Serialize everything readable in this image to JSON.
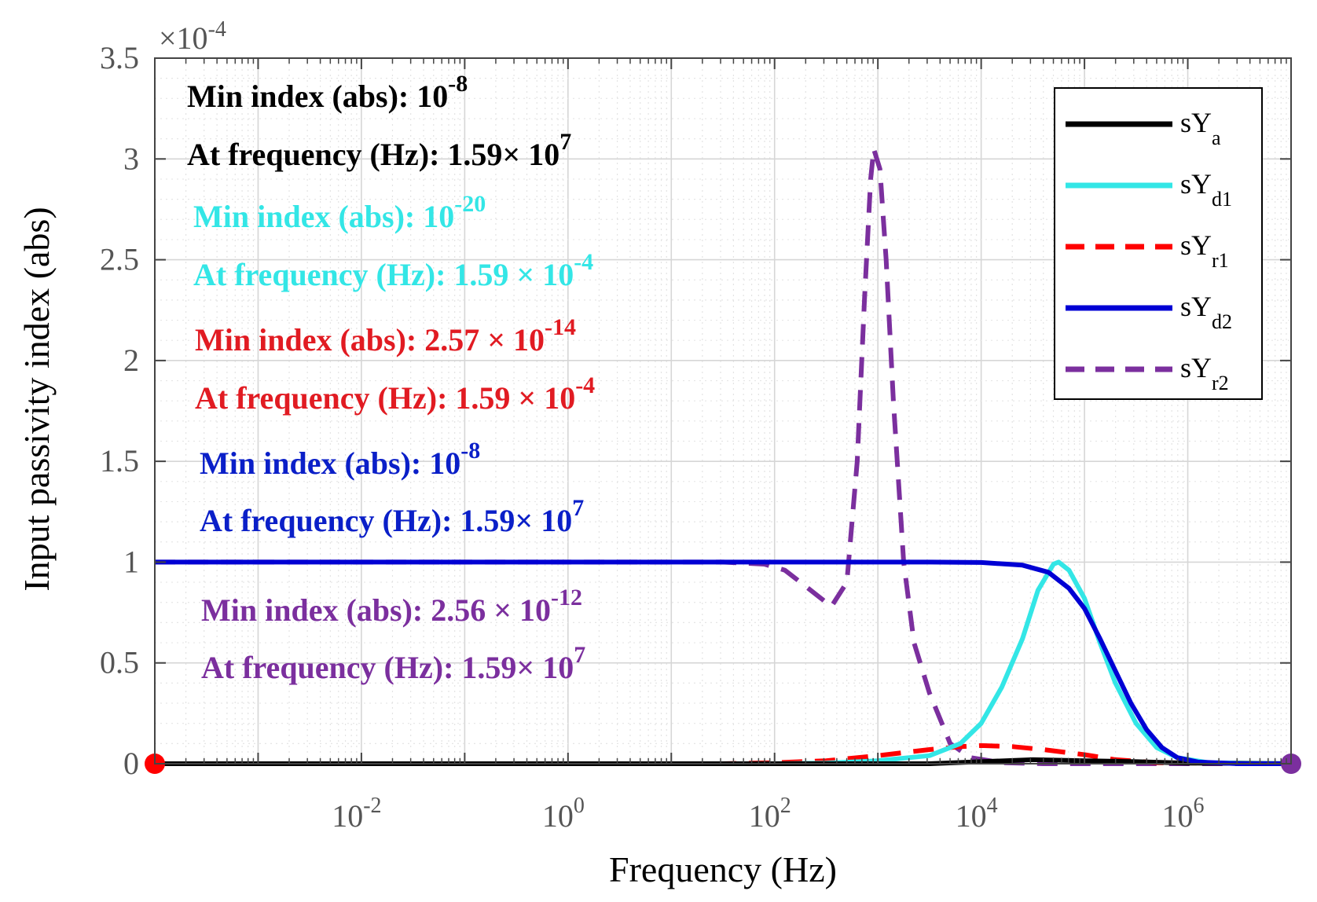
{
  "chart_data": {
    "type": "line",
    "xscale": "log",
    "xlabel": "Frequency (Hz)",
    "ylabel": "Input passivity index (abs)",
    "y_multiplier": "×10",
    "y_multiplier_exp": "-4",
    "xlim": [
      0.0001,
      10000000
    ],
    "ylim": [
      0,
      3.5
    ],
    "grid": true,
    "legend_position": "top-right",
    "xticks": [
      {
        "base": "10",
        "exp": "-2",
        "value": 0.01
      },
      {
        "base": "10",
        "exp": "0",
        "value": 1
      },
      {
        "base": "10",
        "exp": "2",
        "value": 100
      },
      {
        "base": "10",
        "exp": "4",
        "value": 10000
      },
      {
        "base": "10",
        "exp": "6",
        "value": 1000000
      }
    ],
    "yticks": [
      {
        "label": "0",
        "value": 0
      },
      {
        "label": "0.5",
        "value": 0.5
      },
      {
        "label": "1",
        "value": 1
      },
      {
        "label": "1.5",
        "value": 1.5
      },
      {
        "label": "2",
        "value": 2
      },
      {
        "label": "2.5",
        "value": 2.5
      },
      {
        "label": "3",
        "value": 3
      },
      {
        "label": "3.5",
        "value": 3.5
      }
    ],
    "series": [
      {
        "name": "sY",
        "sub": "a",
        "color": "#000000",
        "dash": "solid",
        "points": [
          [
            -4,
            0
          ],
          [
            3.5,
            0
          ],
          [
            4,
            0.01
          ],
          [
            4.5,
            0.02
          ],
          [
            5,
            0.015
          ],
          [
            5.5,
            0.01
          ],
          [
            6,
            0.003
          ],
          [
            7,
            0
          ]
        ]
      },
      {
        "name": "sY",
        "sub": "d1",
        "color": "#33e6e6",
        "dash": "solid",
        "points": [
          [
            -4,
            0
          ],
          [
            2,
            0
          ],
          [
            2.5,
            0.003
          ],
          [
            3,
            0.015
          ],
          [
            3.5,
            0.04
          ],
          [
            3.8,
            0.1
          ],
          [
            4,
            0.2
          ],
          [
            4.2,
            0.38
          ],
          [
            4.4,
            0.62
          ],
          [
            4.55,
            0.86
          ],
          [
            4.7,
            0.99
          ],
          [
            4.75,
            1.0
          ],
          [
            4.85,
            0.96
          ],
          [
            5,
            0.82
          ],
          [
            5.15,
            0.6
          ],
          [
            5.3,
            0.4
          ],
          [
            5.5,
            0.2
          ],
          [
            5.7,
            0.08
          ],
          [
            5.9,
            0.03
          ],
          [
            6.2,
            0.005
          ],
          [
            7,
            0
          ]
        ]
      },
      {
        "name": "sY",
        "sub": "r1",
        "color": "#ff0000",
        "dash": "dashed",
        "points": [
          [
            -4,
            0
          ],
          [
            1.5,
            0
          ],
          [
            2,
            0.005
          ],
          [
            2.5,
            0.015
          ],
          [
            3,
            0.04
          ],
          [
            3.5,
            0.07
          ],
          [
            3.8,
            0.085
          ],
          [
            4,
            0.09
          ],
          [
            4.3,
            0.085
          ],
          [
            4.6,
            0.07
          ],
          [
            5,
            0.045
          ],
          [
            5.3,
            0.02
          ],
          [
            5.7,
            0.005
          ],
          [
            7,
            0
          ]
        ]
      },
      {
        "name": "sY",
        "sub": "d2",
        "color": "#0000d4",
        "dash": "solid",
        "points": [
          [
            -4,
            1.0
          ],
          [
            3.5,
            1.0
          ],
          [
            4,
            0.998
          ],
          [
            4.4,
            0.985
          ],
          [
            4.65,
            0.95
          ],
          [
            4.85,
            0.87
          ],
          [
            5,
            0.77
          ],
          [
            5.15,
            0.62
          ],
          [
            5.3,
            0.46
          ],
          [
            5.45,
            0.3
          ],
          [
            5.6,
            0.17
          ],
          [
            5.75,
            0.08
          ],
          [
            5.9,
            0.03
          ],
          [
            6.1,
            0.008
          ],
          [
            6.5,
            0
          ],
          [
            7,
            0
          ]
        ]
      },
      {
        "name": "sY",
        "sub": "r2",
        "color": "#7b2f9e",
        "dash": "dashed",
        "points": [
          [
            -4,
            1.0
          ],
          [
            1.5,
            1.0
          ],
          [
            1.9,
            0.99
          ],
          [
            2.1,
            0.96
          ],
          [
            2.3,
            0.88
          ],
          [
            2.55,
            0.78
          ],
          [
            2.7,
            0.9
          ],
          [
            2.8,
            1.5
          ],
          [
            2.87,
            2.3
          ],
          [
            2.93,
            2.9
          ],
          [
            2.96,
            3.05
          ],
          [
            3.02,
            2.95
          ],
          [
            3.08,
            2.5
          ],
          [
            3.15,
            1.8
          ],
          [
            3.25,
            1.0
          ],
          [
            3.35,
            0.6
          ],
          [
            3.5,
            0.35
          ],
          [
            3.7,
            0.1
          ],
          [
            3.9,
            0.03
          ],
          [
            4.2,
            0.005
          ],
          [
            4.6,
            0
          ],
          [
            7,
            0
          ]
        ]
      }
    ],
    "annotations": [
      {
        "label": "Min index (abs): ",
        "base": "10",
        "exp": "-8",
        "color": "#000000"
      },
      {
        "label": "At frequency (Hz): 1.59× ",
        "base": "10",
        "exp": "7",
        "color": "#000000"
      },
      {
        "label": "Min index (abs): ",
        "base": "10",
        "exp": "-20",
        "color": "#33e6e6"
      },
      {
        "label": "At frequency (Hz): 1.59 × ",
        "base": "10",
        "exp": "-4",
        "color": "#33e6e6"
      },
      {
        "label": "Min index (abs): 2.57 × ",
        "base": "10",
        "exp": "-14",
        "color": "#e11b22"
      },
      {
        "label": "At frequency (Hz): 1.59 × ",
        "base": "10",
        "exp": "-4",
        "color": "#e11b22"
      },
      {
        "label": "Min index (abs): ",
        "base": "10",
        "exp": "-8",
        "color": "#0a1fc8"
      },
      {
        "label": "At frequency (Hz): 1.59× ",
        "base": "10",
        "exp": "7",
        "color": "#0a1fc8"
      },
      {
        "label": "Min index (abs): 2.56 × ",
        "base": "10",
        "exp": "-12",
        "color": "#7b2f9e"
      },
      {
        "label": "At frequency (Hz): 1.59× ",
        "base": "10",
        "exp": "7",
        "color": "#7b2f9e"
      }
    ],
    "markers": [
      {
        "x": -4,
        "y": 0,
        "color": "#ff0000"
      },
      {
        "x": 7,
        "y": 0,
        "color": "#7b2f9e"
      }
    ]
  }
}
